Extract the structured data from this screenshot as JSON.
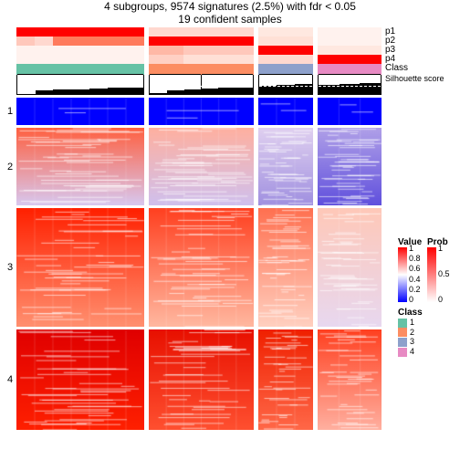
{
  "title_line1": "4 subgroups, 9574 signatures (2.5%) with fdr < 0.05",
  "title_line2": "19 confident samples",
  "title_fontsize": 12,
  "background": "#ffffff",
  "column_groups": [
    {
      "width": 140,
      "n": 7
    },
    {
      "width": 115,
      "n": 6
    },
    {
      "width": 60,
      "n": 3
    },
    {
      "width": 70,
      "n": 3
    }
  ],
  "group_gap": 5,
  "annotations": [
    {
      "name": "p1",
      "label": "p1",
      "rows": [
        [
          "#ff0000",
          "#ff0000",
          "#ff0000",
          "#ff0000",
          "#ff0000",
          "#ff0000",
          "#ff0000"
        ],
        [
          "#ffd8cf",
          "#ffd8cf",
          "#ffd8cf",
          "#ffd8cf",
          "#ffd8cf",
          "#ffd8cf"
        ],
        [
          "#ffe8e0",
          "#ffe8e0",
          "#ffe8e0"
        ],
        [
          "#fff2ee",
          "#fff2ee",
          "#fff2ee"
        ]
      ]
    },
    {
      "name": "p2",
      "label": "p2",
      "rows": [
        [
          "#ffc8bb",
          "#ffd8cf",
          "#ff7a5c",
          "#ff7a5c",
          "#ff7a5c",
          "#ff7a5c",
          "#ff7a5c"
        ],
        [
          "#ff0000",
          "#ff0000",
          "#ff0000",
          "#ff0000",
          "#ff0000",
          "#ff0000"
        ],
        [
          "#ffe0d6",
          "#ffe0d6",
          "#ffe0d6"
        ],
        [
          "#fff2ee",
          "#fff2ee",
          "#fff2ee"
        ]
      ]
    },
    {
      "name": "p3",
      "label": "p3",
      "rows": [
        [
          "#fff2ee",
          "#fff2ee",
          "#fff2ee",
          "#fff2ee",
          "#fff2ee",
          "#fff2ee",
          "#fff2ee"
        ],
        [
          "#ffb8a6",
          "#ffb8a6",
          "#ffc8bb",
          "#ffc8bb",
          "#ffc8bb",
          "#ffc8bb"
        ],
        [
          "#ff0000",
          "#ff0000",
          "#ff0000"
        ],
        [
          "#ffe8e0",
          "#ffe8e0",
          "#ffe8e0"
        ]
      ]
    },
    {
      "name": "p4",
      "label": "p4",
      "rows": [
        [
          "#fff2ee",
          "#fff2ee",
          "#fff2ee",
          "#fff2ee",
          "#fff2ee",
          "#fff2ee",
          "#fff2ee"
        ],
        [
          "#ffd0c4",
          "#ffd0c4",
          "#ffe0d6",
          "#ffe0d6",
          "#ffe0d6",
          "#ffe0d6"
        ],
        [
          "#ffd8cf",
          "#ffd8cf",
          "#ffd8cf"
        ],
        [
          "#ff0000",
          "#ff0000",
          "#ff0000"
        ]
      ]
    }
  ],
  "class_annotation": {
    "label": "Class",
    "colors": [
      "#66c2a5",
      "#fc8d62",
      "#8da0cb",
      "#e78ac3"
    ],
    "assign": [
      0,
      1,
      2,
      3
    ]
  },
  "silhouette": {
    "label": "Silhouette score",
    "bg": "#000000",
    "fg": "#ffffff",
    "ticks": [
      "1",
      "0.5",
      "0"
    ],
    "dash_at": 0.5,
    "heights": [
      [
        0.98,
        0.82,
        0.78,
        0.75,
        0.73,
        0.7,
        0.68
      ],
      [
        0.95,
        0.8,
        0.76,
        0.72,
        0.7,
        0.66
      ],
      [
        0.6,
        0.55,
        0.5
      ],
      [
        0.55,
        0.5,
        0.45
      ]
    ]
  },
  "row_blocks": [
    {
      "label": "1",
      "height": 30,
      "base": "blue_solid"
    },
    {
      "label": "2",
      "height": 85,
      "base": "mixed"
    },
    {
      "label": "3",
      "height": 130,
      "base": "red_grad"
    },
    {
      "label": "4",
      "height": 110,
      "base": "deep_red"
    }
  ],
  "heatmap_style": {
    "cluster1": {
      "g0": "#0000ff",
      "g1": "#0000ff",
      "g2": "#0000ff",
      "g3": "#0000ff",
      "stripe": "#ffffff",
      "density": 0.08
    },
    "cluster2": {
      "g0": {
        "top": "#ff6040",
        "bot": "#d8c8f0"
      },
      "g1": {
        "top": "#ffb0a0",
        "bot": "#d0c0ee"
      },
      "g2": {
        "top": "#e0d0f0",
        "bot": "#a090e0"
      },
      "g3": {
        "top": "#b0a0e8",
        "bot": "#6050dd"
      },
      "stripe": "#ffffff",
      "density": 0.55
    },
    "cluster3": {
      "g0": {
        "top": "#ff2000",
        "bot": "#ff9070"
      },
      "g1": {
        "top": "#ff4020",
        "bot": "#ffb8a0"
      },
      "g2": {
        "top": "#ff7050",
        "bot": "#ffd0c0"
      },
      "g3": {
        "top": "#ffc8b8",
        "bot": "#e8d8f0"
      },
      "stripe": "#ffffff",
      "density": 0.35
    },
    "cluster4": {
      "g0": {
        "top": "#e00000",
        "bot": "#ff2000"
      },
      "g1": {
        "top": "#e81000",
        "bot": "#ff5030"
      },
      "g2": {
        "top": "#f02000",
        "bot": "#ff6848"
      },
      "g3": {
        "top": "#ff4020",
        "bot": "#ffb0a0"
      },
      "stripe": "#ffffff",
      "density": 0.35
    }
  },
  "legends": {
    "value": {
      "title": "Value",
      "ticks": [
        "1",
        "0.8",
        "0.6",
        "0.4",
        "0.2",
        "0"
      ],
      "gradient": [
        "#ff0000",
        "#ffffff",
        "#0000ff"
      ]
    },
    "prob": {
      "title": "Prob",
      "ticks": [
        "1",
        "0.5",
        "0"
      ],
      "gradient": [
        "#ff0000",
        "#ffffff"
      ]
    },
    "class": {
      "title": "Class",
      "items": [
        {
          "label": "1",
          "color": "#66c2a5"
        },
        {
          "label": "2",
          "color": "#fc8d62"
        },
        {
          "label": "3",
          "color": "#8da0cb"
        },
        {
          "label": "4",
          "color": "#e78ac3"
        }
      ]
    }
  }
}
